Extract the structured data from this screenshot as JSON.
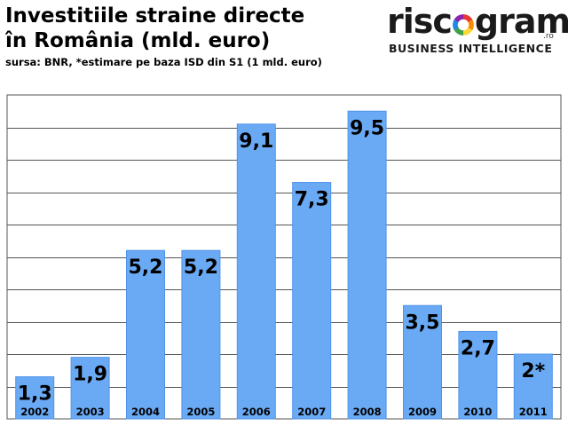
{
  "header": {
    "title_line1": "Investitiile straine directe",
    "title_line2": "în România (mld. euro)",
    "source": "sursa: BNR, *estimare pe baza ISD din S1 (1 mld. euro)"
  },
  "logo": {
    "word_start": "risc",
    "word_end": "grama",
    "tld": ".ro",
    "tagline": "BUSINESS INTELLIGENCE"
  },
  "colors": {
    "bar": "#6aaaf5",
    "bar_edge": "#4f93ea",
    "grid": "#555555",
    "plot_bg": "#ffffff"
  },
  "chart_data": {
    "type": "bar",
    "title": "Investitiile straine directe în România (mld. euro)",
    "xlabel": "",
    "ylabel": "",
    "categories": [
      "2002",
      "2003",
      "2004",
      "2005",
      "2006",
      "2007",
      "2008",
      "2009",
      "2010",
      "2011"
    ],
    "values": [
      1.3,
      1.9,
      5.2,
      5.2,
      9.1,
      7.3,
      9.5,
      3.5,
      2.7,
      2
    ],
    "data_labels": [
      "1,3",
      "1,9",
      "5,2",
      "5,2",
      "9,1",
      "7,3",
      "9,5",
      "3,5",
      "2,7",
      "2*"
    ],
    "ylim": [
      0,
      10
    ],
    "grid": true,
    "legend": "none"
  }
}
